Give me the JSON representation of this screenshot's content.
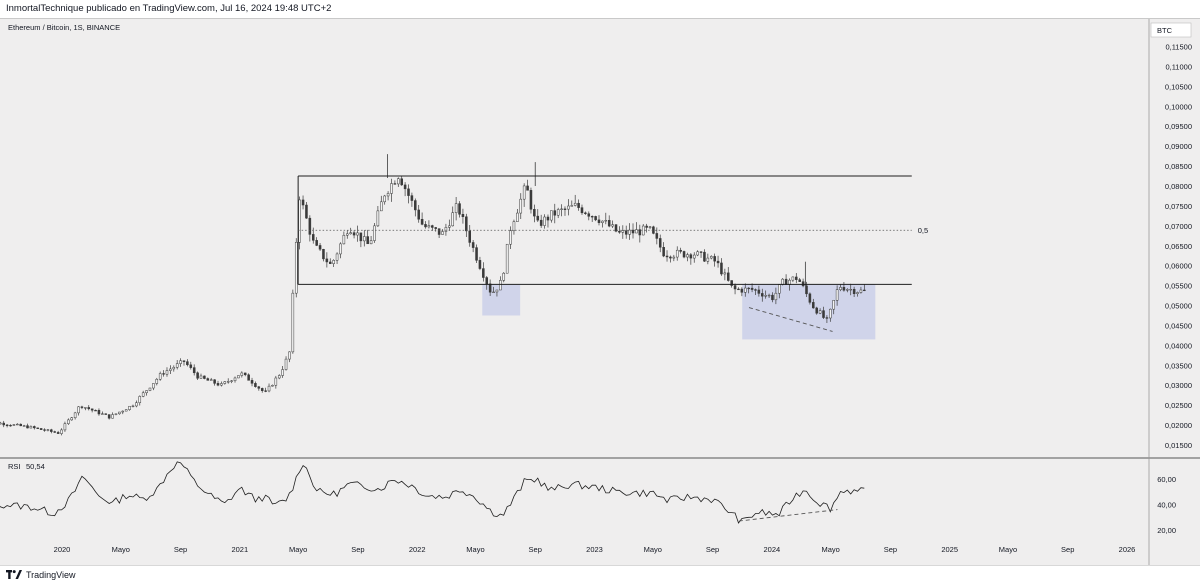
{
  "header": {
    "publisher_text": "InmortalTechnique publicado en TradingView.com, Jul 16, 2024 19:48 UTC+2"
  },
  "symbol_info": "Ethereum / Bitcoin, 1S, BINANCE",
  "currency_badge": "BTC",
  "footer": {
    "brand": "TradingView"
  },
  "colors": {
    "background": "#efeeee",
    "candle": "#3a3a3a",
    "zone_fill": "#c5cbe8",
    "line": "#1f1f1f",
    "rsi_line": "#1f1f1f"
  },
  "chart_data": [
    {
      "type": "candlestick",
      "title": "Ethereum / Bitcoin, 1S, BINANCE",
      "y_unit": "BTC",
      "y_range": [
        0.013,
        0.119
      ],
      "y_ticks": [
        "0,11500",
        "0,11000",
        "0,10500",
        "0,10000",
        "0,09500",
        "0,09000",
        "0,08500",
        "0,08000",
        "0,07500",
        "0,07000",
        "0,06500",
        "0,06000",
        "0,05500",
        "0,05000",
        "0,04500",
        "0,04000",
        "0,03500",
        "0,03000",
        "0,02500",
        "0,02000",
        "0,01500"
      ],
      "x_ticks": [
        "2020",
        "Mayo",
        "Sep",
        "2021",
        "Mayo",
        "Sep",
        "2022",
        "Mayo",
        "Sep",
        "2023",
        "Mayo",
        "Sep",
        "2024",
        "Mayo",
        "Sep",
        "2025",
        "Mayo",
        "Sep",
        "2026"
      ],
      "close_path": [
        [
          "2019-07-16",
          0.02
        ],
        [
          "2019-09-01",
          0.0205
        ],
        [
          "2019-11-01",
          0.0195
        ],
        [
          "2020-01-01",
          0.018
        ],
        [
          "2020-02-15",
          0.025
        ],
        [
          "2020-03-15",
          0.0235
        ],
        [
          "2020-04-15",
          0.022
        ],
        [
          "2020-06-01",
          0.025
        ],
        [
          "2020-08-01",
          0.033
        ],
        [
          "2020-09-15",
          0.036
        ],
        [
          "2020-10-15",
          0.032
        ],
        [
          "2020-12-01",
          0.03
        ],
        [
          "2021-01-10",
          0.033
        ],
        [
          "2021-02-01",
          0.031
        ],
        [
          "2021-03-01",
          0.028
        ],
        [
          "2021-04-01",
          0.033
        ],
        [
          "2021-04-20",
          0.038
        ],
        [
          "2021-05-10",
          0.078
        ],
        [
          "2021-06-10",
          0.065
        ],
        [
          "2021-07-15",
          0.06
        ],
        [
          "2021-08-20",
          0.07
        ],
        [
          "2021-10-01",
          0.065
        ],
        [
          "2021-11-01",
          0.078
        ],
        [
          "2021-12-01",
          0.083
        ],
        [
          "2021-12-20",
          0.078
        ],
        [
          "2022-01-20",
          0.07
        ],
        [
          "2022-03-01",
          0.068
        ],
        [
          "2022-04-01",
          0.075
        ],
        [
          "2022-05-01",
          0.065
        ],
        [
          "2022-06-10",
          0.053
        ],
        [
          "2022-07-01",
          0.056
        ],
        [
          "2022-07-20",
          0.07
        ],
        [
          "2022-08-20",
          0.08
        ],
        [
          "2022-09-10",
          0.07
        ],
        [
          "2022-10-15",
          0.073
        ],
        [
          "2022-12-01",
          0.075
        ],
        [
          "2023-01-15",
          0.072
        ],
        [
          "2023-03-01",
          0.068
        ],
        [
          "2023-05-01",
          0.069
        ],
        [
          "2023-06-01",
          0.063
        ],
        [
          "2023-08-01",
          0.063
        ],
        [
          "2023-09-15",
          0.061
        ],
        [
          "2023-10-20",
          0.054
        ],
        [
          "2023-12-01",
          0.054
        ],
        [
          "2024-01-10",
          0.052
        ],
        [
          "2024-02-01",
          0.056
        ],
        [
          "2024-03-01",
          0.057
        ],
        [
          "2024-04-01",
          0.05
        ],
        [
          "2024-05-01",
          0.046
        ],
        [
          "2024-05-25",
          0.055
        ],
        [
          "2024-06-20",
          0.054
        ],
        [
          "2024-07-15",
          0.0535
        ]
      ],
      "swing_highs": [
        [
          "2021-11-01",
          0.088
        ],
        [
          "2022-09-01",
          0.086
        ],
        [
          "2024-03-10",
          0.061
        ]
      ],
      "annotations": {
        "range_top": 0.0825,
        "range_bottom": 0.0553,
        "range_start": "2021-05-01",
        "range_end": "2024-10-15",
        "midline": 0.0689,
        "midline_label": "0,5",
        "zone_1": {
          "x0": "2022-05-15",
          "x1": "2022-08-01",
          "y0": 0.0475,
          "y1": 0.0553
        },
        "zone_2": {
          "x0": "2023-11-01",
          "x1": "2024-08-01",
          "y0": 0.0415,
          "y1": 0.0553
        },
        "divergence_price": {
          "x0": "2023-11-15",
          "y0": 0.0495,
          "x1": "2024-05-05",
          "y1": 0.0435
        }
      }
    },
    {
      "type": "line",
      "title": "RSI",
      "value_label": "50,54",
      "y_ticks": [
        "60,00",
        "40,00",
        "20,00"
      ],
      "y_range": [
        10,
        82
      ],
      "series": [
        {
          "points": [
            [
              "2019-07-16",
              37
            ],
            [
              "2019-09-01",
              40
            ],
            [
              "2019-11-01",
              38
            ],
            [
              "2019-12-15",
              33
            ],
            [
              "2020-01-15",
              43
            ],
            [
              "2020-02-15",
              62
            ],
            [
              "2020-03-15",
              47
            ],
            [
              "2020-04-15",
              41
            ],
            [
              "2020-05-15",
              48
            ],
            [
              "2020-06-15",
              44
            ],
            [
              "2020-07-15",
              52
            ],
            [
              "2020-08-15",
              70
            ],
            [
              "2020-09-01",
              73
            ],
            [
              "2020-10-01",
              57
            ],
            [
              "2020-11-01",
              47
            ],
            [
              "2020-12-01",
              40
            ],
            [
              "2021-01-01",
              53
            ],
            [
              "2021-02-01",
              44
            ],
            [
              "2021-02-20",
              46
            ],
            [
              "2021-03-15",
              39
            ],
            [
              "2021-04-10",
              45
            ],
            [
              "2021-04-25",
              58
            ],
            [
              "2021-05-10",
              74
            ],
            [
              "2021-06-10",
              50
            ],
            [
              "2021-07-15",
              48
            ],
            [
              "2021-08-15",
              56
            ],
            [
              "2021-09-20",
              54
            ],
            [
              "2021-10-15",
              52
            ],
            [
              "2021-11-15",
              60
            ],
            [
              "2021-12-20",
              55
            ],
            [
              "2022-01-20",
              47
            ],
            [
              "2022-03-01",
              46
            ],
            [
              "2022-04-01",
              52
            ],
            [
              "2022-05-01",
              46
            ],
            [
              "2022-06-01",
              35
            ],
            [
              "2022-06-25",
              31
            ],
            [
              "2022-07-15",
              42
            ],
            [
              "2022-08-10",
              58
            ],
            [
              "2022-09-05",
              60
            ],
            [
              "2022-10-01",
              51
            ],
            [
              "2022-11-15",
              56
            ],
            [
              "2023-01-10",
              53
            ],
            [
              "2023-02-15",
              50
            ],
            [
              "2023-04-01",
              49
            ],
            [
              "2023-05-01",
              49
            ],
            [
              "2023-06-01",
              43
            ],
            [
              "2023-07-15",
              46
            ],
            [
              "2023-09-01",
              44
            ],
            [
              "2023-10-01",
              36
            ],
            [
              "2023-11-01",
              26
            ],
            [
              "2023-12-01",
              34
            ],
            [
              "2024-01-15",
              32
            ],
            [
              "2024-02-15",
              46
            ],
            [
              "2024-03-10",
              52
            ],
            [
              "2024-04-01",
              43
            ],
            [
              "2024-05-01",
              37
            ],
            [
              "2024-05-25",
              52
            ],
            [
              "2024-06-20",
              50
            ],
            [
              "2024-07-15",
              50.5
            ]
          ]
        }
      ],
      "annotations": {
        "divergence_rsi": {
          "x0": "2023-10-25",
          "y0": 27,
          "x1": "2024-05-15",
          "y1": 36
        }
      }
    }
  ]
}
